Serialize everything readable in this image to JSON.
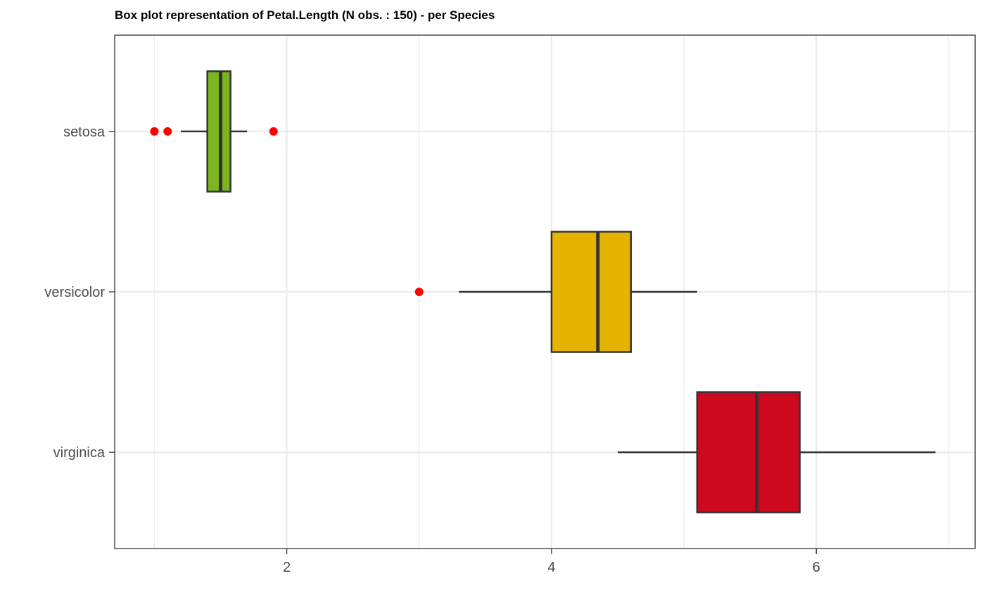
{
  "chart_data": {
    "type": "boxplot",
    "orientation": "horizontal",
    "title": "Box plot representation of Petal.Length (N obs. : 150) - per Species",
    "xlabel": "",
    "ylabel": "",
    "xlim": [
      0.7,
      7.2
    ],
    "x_ticks": [
      2,
      4,
      6
    ],
    "x_tick_labels": [
      "2",
      "4",
      "6"
    ],
    "grid": true,
    "legend": "none",
    "categories": [
      "setosa",
      "versicolor",
      "virginica"
    ],
    "series": [
      {
        "category": "setosa",
        "lower_whisker": 1.2,
        "q1": 1.4,
        "median": 1.5,
        "q3": 1.575,
        "upper_whisker": 1.7,
        "outliers": [
          1.0,
          1.1,
          1.9
        ],
        "color": "#7CB51E"
      },
      {
        "category": "versicolor",
        "lower_whisker": 3.3,
        "q1": 4.0,
        "median": 4.35,
        "q3": 4.6,
        "upper_whisker": 5.1,
        "outliers": [
          3.0
        ],
        "color": "#E6B400"
      },
      {
        "category": "virginica",
        "lower_whisker": 4.5,
        "q1": 5.1,
        "median": 5.55,
        "q3": 5.875,
        "upper_whisker": 6.9,
        "outliers": [],
        "color": "#CE081E"
      }
    ],
    "outlier_color": "#FF0000"
  }
}
